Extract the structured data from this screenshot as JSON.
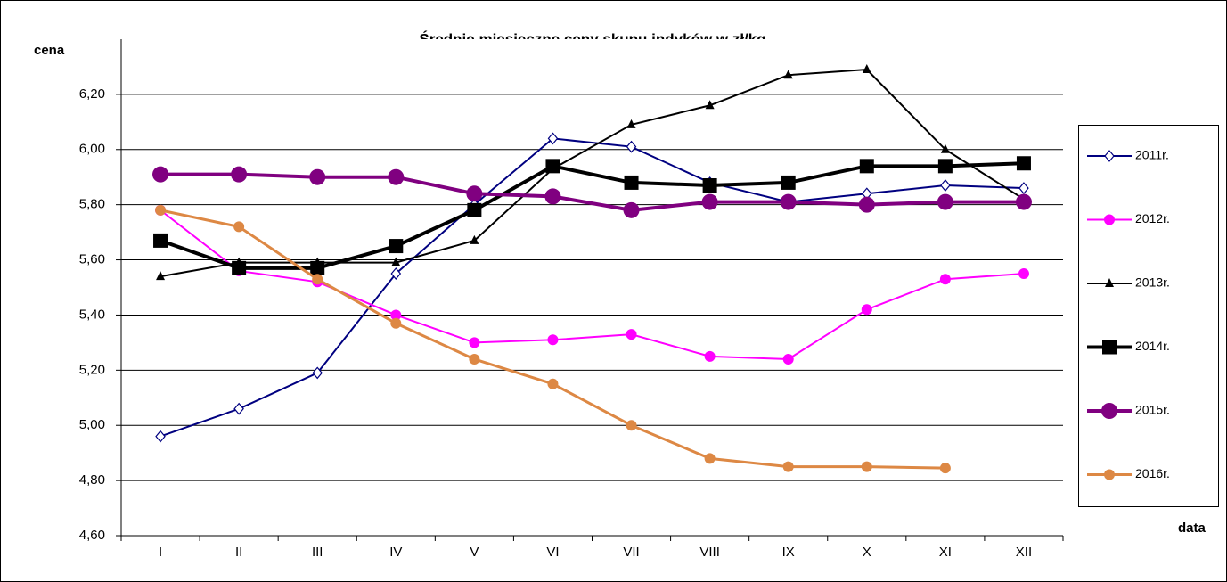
{
  "chart_data": {
    "type": "line",
    "title": "Średnie miesieczne ceny skupu indyków w zł/kg",
    "y_label": "cena",
    "x_label": "data",
    "categories": [
      "I",
      "II",
      "III",
      "IV",
      "V",
      "VI",
      "VII",
      "VIII",
      "IX",
      "X",
      "XI",
      "XII"
    ],
    "ylim": [
      4.6,
      6.4
    ],
    "yticks": [
      {
        "value": 4.6,
        "label": "4,60"
      },
      {
        "value": 4.8,
        "label": "4,80"
      },
      {
        "value": 5.0,
        "label": "5,00"
      },
      {
        "value": 5.2,
        "label": "5,20"
      },
      {
        "value": 5.4,
        "label": "5,40"
      },
      {
        "value": 5.6,
        "label": "5,60"
      },
      {
        "value": 5.8,
        "label": "5,80"
      },
      {
        "value": 6.0,
        "label": "6,00"
      },
      {
        "value": 6.2,
        "label": "6,20"
      }
    ],
    "grid": true,
    "legend": "right",
    "series": [
      {
        "name": "2011r.",
        "color": "#000080",
        "marker": "diamond",
        "line_width": 2,
        "values": [
          4.96,
          5.06,
          5.19,
          5.55,
          5.8,
          6.04,
          6.01,
          5.88,
          5.81,
          5.84,
          5.87,
          5.86
        ]
      },
      {
        "name": "2012r.",
        "color": "#ff00ff",
        "marker": "circle",
        "line_width": 2,
        "values": [
          5.78,
          5.56,
          5.52,
          5.4,
          5.3,
          5.31,
          5.33,
          5.25,
          5.24,
          5.42,
          5.53,
          5.55
        ]
      },
      {
        "name": "2013r.",
        "color": "#000000",
        "marker": "triangle",
        "line_width": 2,
        "values": [
          5.54,
          5.59,
          5.59,
          5.59,
          5.67,
          5.93,
          6.09,
          6.16,
          6.27,
          6.29,
          6.0,
          5.82
        ]
      },
      {
        "name": "2014r.",
        "color": "#000000",
        "marker": "square",
        "line_width": 4,
        "values": [
          5.67,
          5.57,
          5.57,
          5.65,
          5.78,
          5.94,
          5.88,
          5.87,
          5.88,
          5.94,
          5.94,
          5.95
        ]
      },
      {
        "name": "2015r.",
        "color": "#800080",
        "marker": "bigcircle",
        "line_width": 4,
        "values": [
          5.91,
          5.91,
          5.9,
          5.9,
          5.84,
          5.83,
          5.78,
          5.81,
          5.81,
          5.8,
          5.81,
          5.81
        ]
      },
      {
        "name": "2016r.",
        "color": "#dd8844",
        "marker": "circle",
        "line_width": 3,
        "values": [
          5.78,
          5.72,
          5.53,
          5.37,
          5.24,
          5.15,
          5.0,
          4.88,
          4.85,
          4.85,
          4.845,
          null
        ]
      }
    ]
  }
}
